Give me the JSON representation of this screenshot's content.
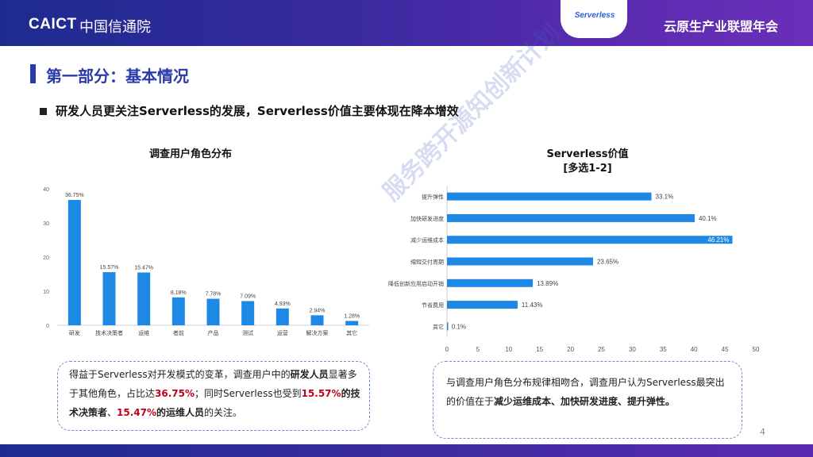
{
  "header": {
    "logo_en": "CAICT",
    "logo_cn": "中国信通院",
    "badge": "Serverless",
    "right_title": "云原生产业联盟年会"
  },
  "section_title": "第一部分：基本情况",
  "headline": "研发人员更关注Serverless的发展，Serverless价值主要体现在降本增效",
  "watermark": "服务跨开源知创新计划",
  "left_box": {
    "t1": "得益于Serverless对开发模式的变革，调查用户中的",
    "b1": "研发人员",
    "t2": "显著多于其他角色，占比达",
    "r1": "36.75%",
    "t3": "；同时Serverless也受到",
    "r2": "15.57%",
    "b2": "的技术决策者",
    "t4": "、",
    "r3": "15.47%",
    "b3": "的运维人员",
    "t5": "的关注。"
  },
  "right_box": {
    "t1": "与调查用户角色分布规律相吻合，调查用户认为Serverless最突出的价值在于",
    "b1": "减少运维成本、加快研发进度、提升弹性。"
  },
  "page_number": "4",
  "colors": {
    "bar": "#1e88e5",
    "accent": "#c0001a",
    "title": "#2a3aa8"
  },
  "chart_data": [
    {
      "type": "bar",
      "title": "调查用户角色分布",
      "categories": [
        "研发",
        "技术决策者",
        "运维",
        "者前",
        "产品",
        "测试",
        "运营",
        "解决方案",
        "其它"
      ],
      "values": [
        36.75,
        15.57,
        15.47,
        8.18,
        7.78,
        7.09,
        4.93,
        2.94,
        1.28
      ],
      "labels": [
        "36.75%",
        "15.57%",
        "15.47%",
        "8.18%",
        "7.78%",
        "7.09%",
        "4.93%",
        "2.94%",
        "1.28%"
      ],
      "ylim": [
        0,
        40
      ],
      "yticks": [
        0,
        10,
        20,
        30,
        40
      ],
      "grid": false
    },
    {
      "type": "bar",
      "orientation": "horizontal",
      "title": "Serverless价值",
      "subtitle": "[多选1-2]",
      "categories": [
        "提升弹性",
        "加快研发进度",
        "减少运维成本",
        "缩短交付周期",
        "降低创新应用启动开销",
        "节省费用",
        "其它"
      ],
      "values": [
        33.1,
        40.1,
        46.21,
        23.65,
        13.89,
        11.43,
        0.1
      ],
      "labels": [
        "33.1%",
        "40.1%",
        "46.21%",
        "23.65%",
        "13.89%",
        "11.43%",
        "0.1%"
      ],
      "xlim": [
        0,
        50
      ],
      "xticks": [
        0,
        5,
        10,
        15,
        20,
        25,
        30,
        35,
        40,
        45,
        50
      ],
      "grid": false
    }
  ]
}
